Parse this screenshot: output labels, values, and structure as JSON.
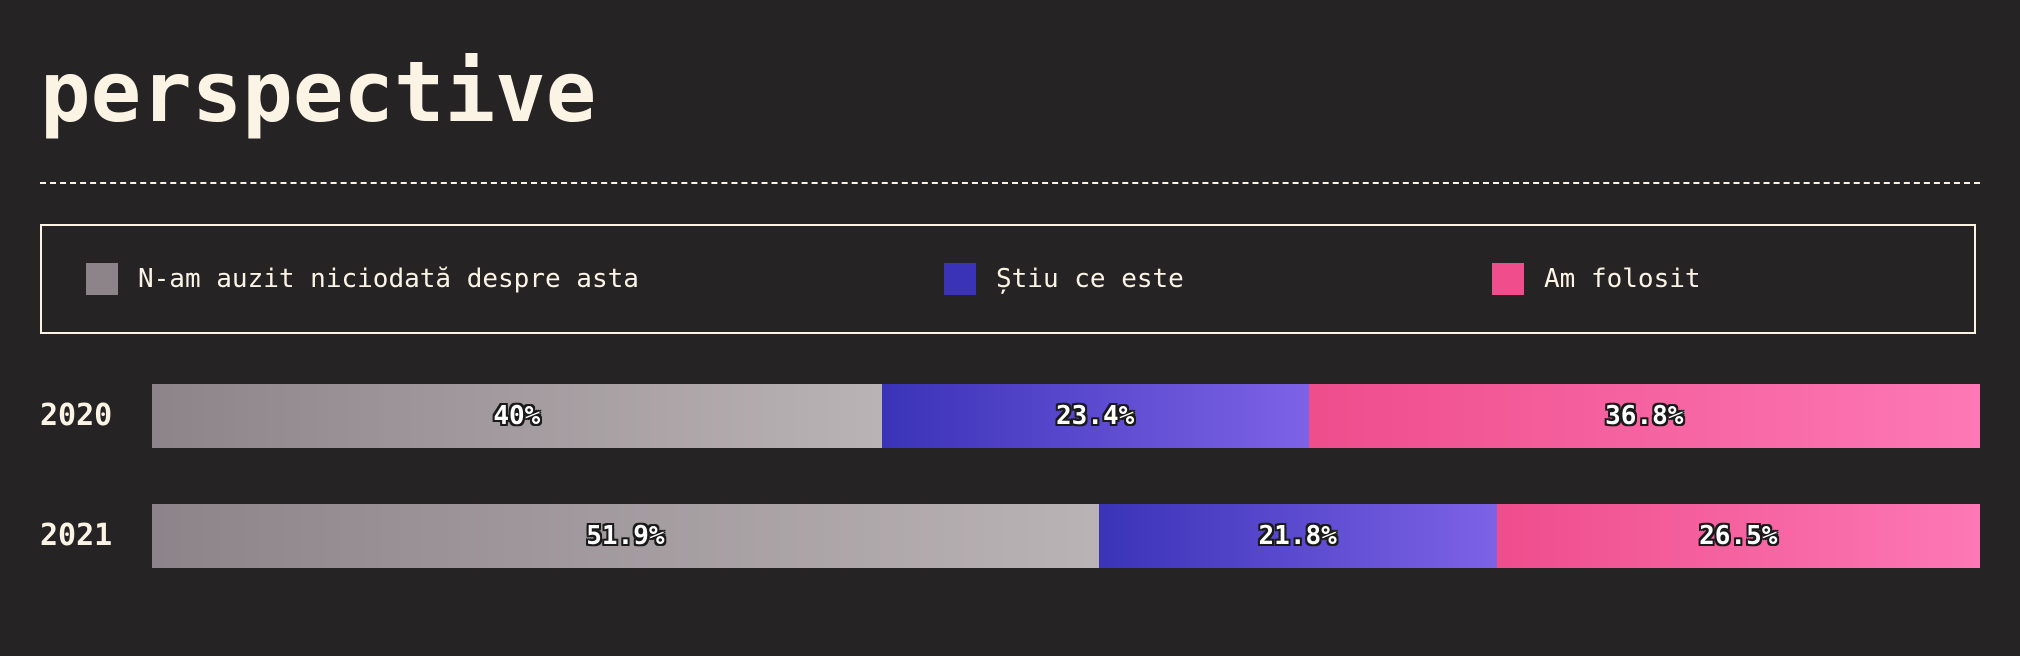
{
  "title": "perspective",
  "legend": [
    {
      "label": "N-am auzit niciodată despre asta",
      "color": "#8c8489"
    },
    {
      "label": "Știu ce este",
      "color": "#3a33b8"
    },
    {
      "label": "Am folosit",
      "color": "#ef4d8c"
    }
  ],
  "chart_data": {
    "type": "bar",
    "orientation": "horizontal",
    "stacked": true,
    "normalized": true,
    "categories": [
      "2020",
      "2021"
    ],
    "series": [
      {
        "name": "N-am auzit niciodată despre asta",
        "values": [
          40,
          51.9
        ],
        "labels": [
          "40%",
          "51.9%"
        ],
        "color_start": "#8c8489",
        "color_end": "#bab3b5"
      },
      {
        "name": "Știu ce este",
        "values": [
          23.4,
          21.8
        ],
        "labels": [
          "23.4%",
          "21.8%"
        ],
        "color_start": "#3a33b8",
        "color_end": "#7d62e6"
      },
      {
        "name": "Am folosit",
        "values": [
          36.8,
          26.5
        ],
        "labels": [
          "36.8%",
          "26.5%"
        ],
        "color_start": "#ef4d8c",
        "color_end": "#fd78b5"
      }
    ],
    "legend_position": "top"
  }
}
